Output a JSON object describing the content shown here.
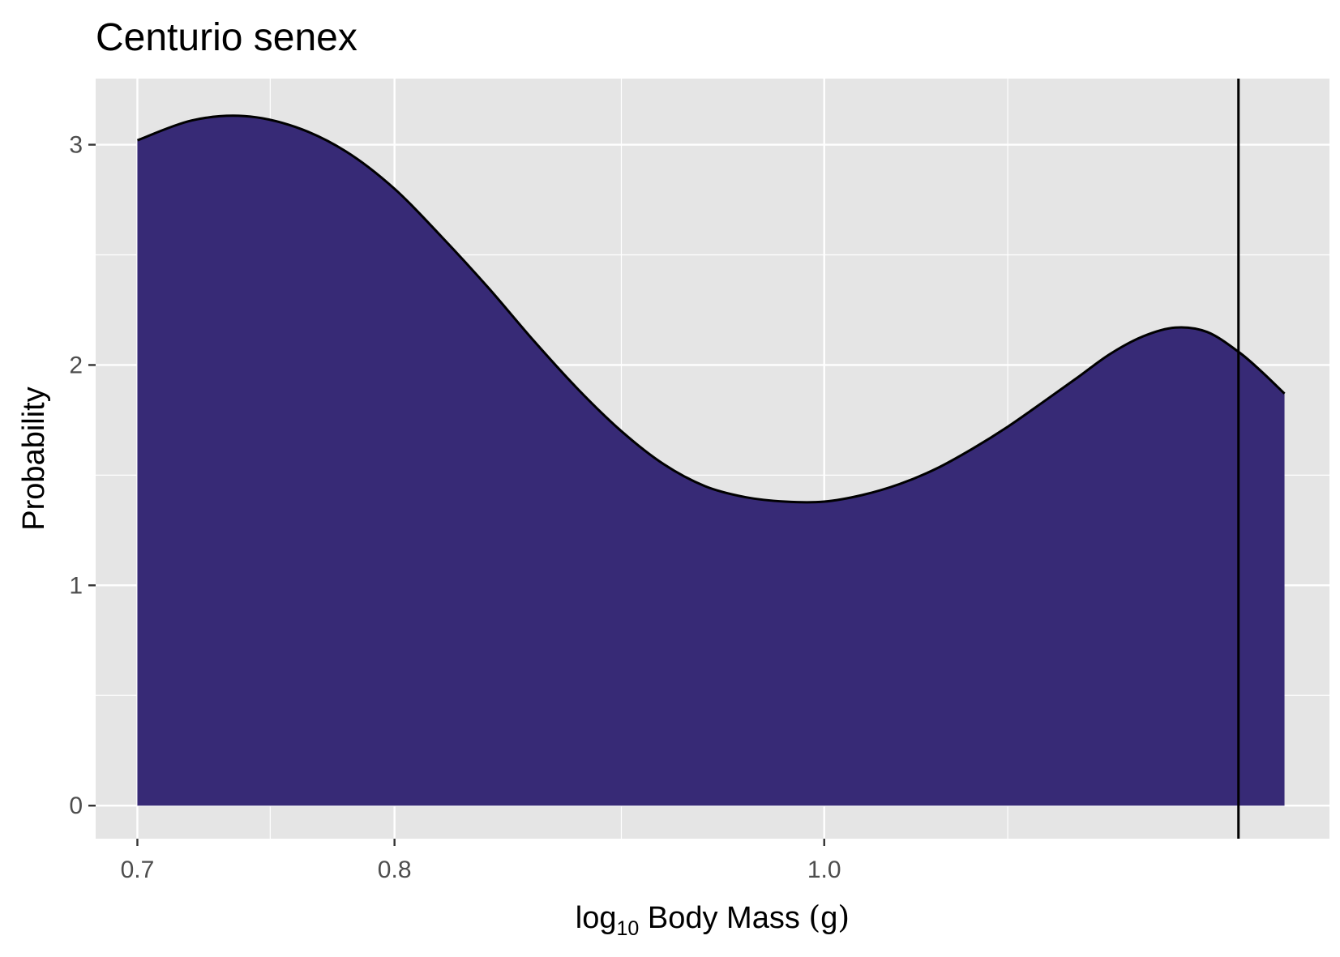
{
  "chart_data": {
    "type": "area",
    "title": "Centurio senex",
    "xlabel": {
      "prefix": "log",
      "subscript": "10",
      "rest": " Body Mass ",
      "paren_open": "(",
      "unit": "g",
      "paren_close": ")"
    },
    "ylabel": "Probability",
    "x_scale": "log10",
    "xlim": [
      0.685,
      1.3
    ],
    "ylim": [
      -0.15,
      3.3
    ],
    "x_ticks": [
      0.7,
      0.8,
      1.0
    ],
    "x_tick_labels": [
      "0.7",
      "0.8",
      "1.0"
    ],
    "x_minor_ticks": [
      0.75,
      0.9,
      1.1
    ],
    "y_ticks": [
      0,
      1,
      2,
      3
    ],
    "y_tick_labels": [
      "0",
      "1",
      "2",
      "3"
    ],
    "y_minor_ticks": [
      0.5,
      1.5,
      2.5
    ],
    "grid": true,
    "series": [
      {
        "x": [
          0.7,
          0.72,
          0.74,
          0.76,
          0.78,
          0.8,
          0.82,
          0.84,
          0.86,
          0.88,
          0.9,
          0.92,
          0.94,
          0.96,
          0.98,
          1.0,
          1.02,
          1.04,
          1.06,
          1.08,
          1.1,
          1.12,
          1.14,
          1.16,
          1.18,
          1.2,
          1.22,
          1.24,
          1.255,
          1.27
        ],
        "y": [
          3.02,
          3.11,
          3.13,
          3.08,
          2.97,
          2.8,
          2.58,
          2.35,
          2.11,
          1.89,
          1.7,
          1.55,
          1.45,
          1.4,
          1.38,
          1.38,
          1.41,
          1.46,
          1.53,
          1.62,
          1.72,
          1.83,
          1.94,
          2.05,
          2.13,
          2.17,
          2.15,
          2.06,
          1.97,
          1.87
        ],
        "fill": "#372a76",
        "stroke": "#000000"
      }
    ],
    "vlines": [
      1.24
    ],
    "panel_background": "#e5e5e5",
    "grid_color": "#ffffff"
  }
}
